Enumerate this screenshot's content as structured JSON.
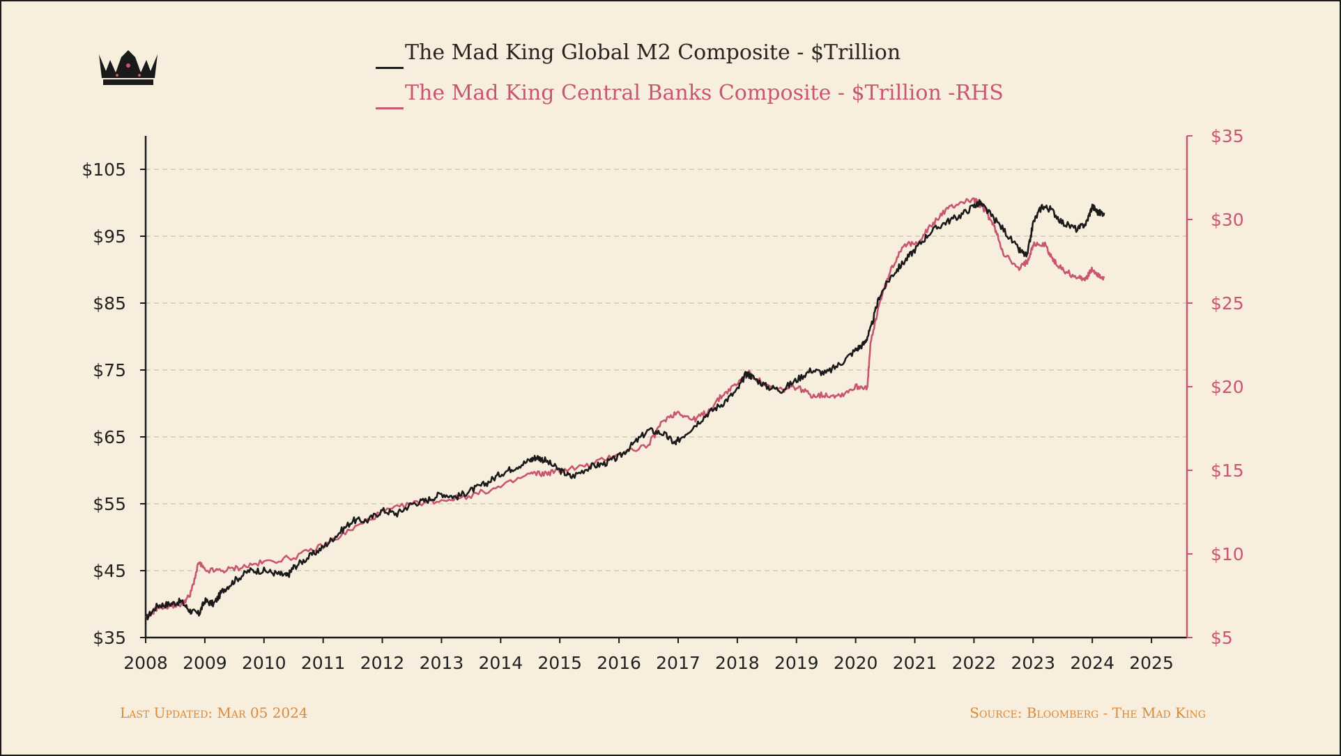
{
  "colors": {
    "background": "#f8eedd",
    "m2_line": "#1a1a1a",
    "cb_line": "#c8566f",
    "grid": "#cfc7b8",
    "footer": "#d98a3a"
  },
  "logo": {
    "icon": "crown-icon"
  },
  "legend": [
    {
      "label": "The Mad King Global M2 Composite - $Trillion",
      "color": "#1a1a1a"
    },
    {
      "label": "The Mad King Central Banks Composite - $Trillion -RHS",
      "color": "#c8566f"
    }
  ],
  "footer": {
    "last_updated": "Last Updated: Mar 05 2024",
    "source": "Source: Bloomberg - The Mad King"
  },
  "chart_data": {
    "type": "line",
    "x_range": [
      2008,
      2025.6
    ],
    "y_left": {
      "range": [
        35,
        110
      ],
      "ticks": [
        35,
        45,
        55,
        65,
        75,
        85,
        95,
        105
      ],
      "tick_labels": [
        "$35",
        "$45",
        "$55",
        "$65",
        "$75",
        "$85",
        "$95",
        "$105"
      ]
    },
    "y_right": {
      "range": [
        5,
        35
      ],
      "ticks": [
        5,
        10,
        15,
        20,
        25,
        30,
        35
      ],
      "tick_labels": [
        "$5",
        "$10",
        "$15",
        "$20",
        "$25",
        "$30",
        "$35"
      ]
    },
    "x_ticks": [
      2008,
      2009,
      2010,
      2011,
      2012,
      2013,
      2014,
      2015,
      2016,
      2017,
      2018,
      2019,
      2020,
      2021,
      2022,
      2023,
      2024,
      2025
    ],
    "x_tick_labels": [
      "2008",
      "2009",
      "2010",
      "2011",
      "2012",
      "2013",
      "2014",
      "2015",
      "2016",
      "2017",
      "2018",
      "2019",
      "2020",
      "2021",
      "2022",
      "2023",
      "2024",
      "2025"
    ],
    "grid": "horizontal-dashed",
    "legend_position": "top-center",
    "series": [
      {
        "name": "The Mad King Global M2 Composite - $Trillion",
        "axis": "left",
        "x": [
          2008.0,
          2008.2,
          2008.4,
          2008.6,
          2008.75,
          2008.9,
          2009.0,
          2009.15,
          2009.3,
          2009.5,
          2009.75,
          2010.0,
          2010.25,
          2010.4,
          2010.5,
          2010.75,
          2011.0,
          2011.25,
          2011.5,
          2011.75,
          2012.0,
          2012.25,
          2012.5,
          2012.75,
          2013.0,
          2013.25,
          2013.5,
          2013.75,
          2014.0,
          2014.25,
          2014.5,
          2014.6,
          2014.75,
          2015.0,
          2015.2,
          2015.5,
          2015.75,
          2016.0,
          2016.25,
          2016.5,
          2016.75,
          2016.95,
          2017.0,
          2017.25,
          2017.5,
          2017.75,
          2018.0,
          2018.15,
          2018.25,
          2018.5,
          2018.75,
          2019.0,
          2019.25,
          2019.5,
          2019.75,
          2020.0,
          2020.15,
          2020.25,
          2020.4,
          2020.6,
          2020.8,
          2021.0,
          2021.25,
          2021.5,
          2021.75,
          2022.0,
          2022.1,
          2022.25,
          2022.5,
          2022.75,
          2022.9,
          2023.0,
          2023.15,
          2023.3,
          2023.5,
          2023.75,
          2023.9,
          2024.0,
          2024.1,
          2024.2
        ],
        "values": [
          37.8,
          39.8,
          40.0,
          40.4,
          39.0,
          38.5,
          40.5,
          40.0,
          42.0,
          43.5,
          45.0,
          45.0,
          44.5,
          44.2,
          45.5,
          47.0,
          48.5,
          50.5,
          52.5,
          52.5,
          54.0,
          53.5,
          55.0,
          55.5,
          56.5,
          56.0,
          57.0,
          58.0,
          59.5,
          60.5,
          61.5,
          62.0,
          61.5,
          60.0,
          59.0,
          60.5,
          61.0,
          62.0,
          64.0,
          66.0,
          65.5,
          64.0,
          64.5,
          66.5,
          68.5,
          70.0,
          72.0,
          74.5,
          74.0,
          72.5,
          72.0,
          73.5,
          75.0,
          74.5,
          76.0,
          78.0,
          79.0,
          81.0,
          86.0,
          89.0,
          91.0,
          93.0,
          95.5,
          97.0,
          98.0,
          99.5,
          100.0,
          98.5,
          96.0,
          93.0,
          92.0,
          97.0,
          99.5,
          99.0,
          97.0,
          96.0,
          97.0,
          99.5,
          98.5,
          98.5
        ]
      },
      {
        "name": "The Mad King Central Banks Composite - $Trillion -RHS",
        "axis": "right",
        "x": [
          2008.0,
          2008.2,
          2008.4,
          2008.6,
          2008.75,
          2008.9,
          2009.0,
          2009.3,
          2009.6,
          2010.0,
          2010.5,
          2011.0,
          2011.5,
          2012.0,
          2012.5,
          2013.0,
          2013.5,
          2014.0,
          2014.5,
          2014.75,
          2015.0,
          2015.5,
          2016.0,
          2016.5,
          2016.75,
          2017.0,
          2017.25,
          2017.5,
          2017.75,
          2018.0,
          2018.2,
          2018.5,
          2018.75,
          2019.0,
          2019.25,
          2019.5,
          2019.75,
          2020.0,
          2020.2,
          2020.25,
          2020.4,
          2020.6,
          2020.8,
          2021.0,
          2021.25,
          2021.5,
          2021.75,
          2022.0,
          2022.2,
          2022.35,
          2022.5,
          2022.75,
          2022.9,
          2023.0,
          2023.2,
          2023.35,
          2023.5,
          2023.75,
          2023.9,
          2024.0,
          2024.1,
          2024.2
        ],
        "values": [
          6.1,
          6.8,
          6.9,
          7.0,
          7.5,
          9.5,
          9.0,
          9.0,
          9.2,
          9.5,
          9.8,
          10.5,
          11.5,
          12.5,
          13.0,
          13.2,
          13.5,
          14.0,
          14.8,
          14.8,
          15.0,
          15.3,
          16.0,
          16.5,
          18.0,
          18.5,
          18.0,
          18.5,
          19.5,
          20.2,
          20.8,
          20.0,
          19.8,
          20.0,
          19.5,
          19.5,
          19.5,
          20.0,
          20.0,
          22.5,
          25.0,
          27.0,
          28.5,
          28.5,
          29.5,
          30.5,
          31.0,
          31.2,
          30.5,
          29.5,
          28.0,
          27.0,
          27.5,
          28.5,
          28.5,
          27.5,
          27.0,
          26.5,
          26.5,
          27.0,
          26.7,
          26.5
        ]
      }
    ]
  }
}
